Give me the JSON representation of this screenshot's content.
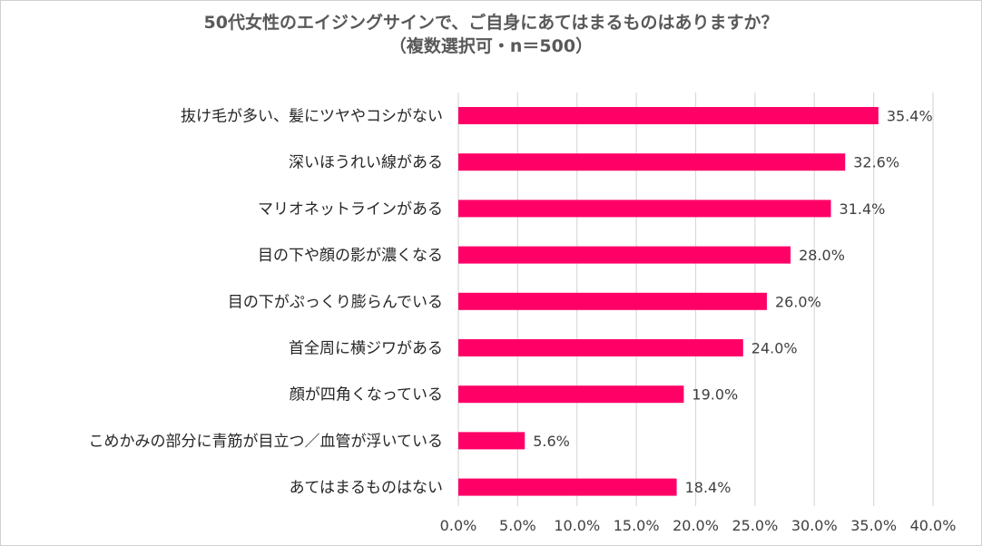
{
  "chart_data": {
    "type": "bar",
    "orientation": "horizontal",
    "title": "50代女性のエイジングサインで、ご自身にあてはまるものはありますか？",
    "subtitle": "（複数選択可・n＝500）",
    "categories": [
      "抜け毛が多い、髪にツヤやコシがない",
      "深いほうれい線がある",
      "マリオネットラインがある",
      "目の下や顔の影が濃くなる",
      "目の下がぷっくり膨らんでいる",
      "首全周に横ジワがある",
      "顔が四角くなっている",
      "こめかみの部分に青筋が目立つ／血管が浮いている",
      "あてはまるものはない"
    ],
    "values": [
      35.4,
      32.6,
      31.4,
      28.0,
      26.0,
      24.0,
      19.0,
      5.6,
      18.4
    ],
    "value_labels": [
      "35.4%",
      "32.6%",
      "31.4%",
      "28.0%",
      "26.0%",
      "24.0%",
      "19.0%",
      "5.6%",
      "18.4%"
    ],
    "xlim": [
      0,
      40
    ],
    "xticks": [
      "0.0%",
      "5.0%",
      "10.0%",
      "15.0%",
      "20.0%",
      "25.0%",
      "30.0%",
      "35.0%",
      "40.0%"
    ],
    "grid": true,
    "bar_color": "#ff0066"
  }
}
